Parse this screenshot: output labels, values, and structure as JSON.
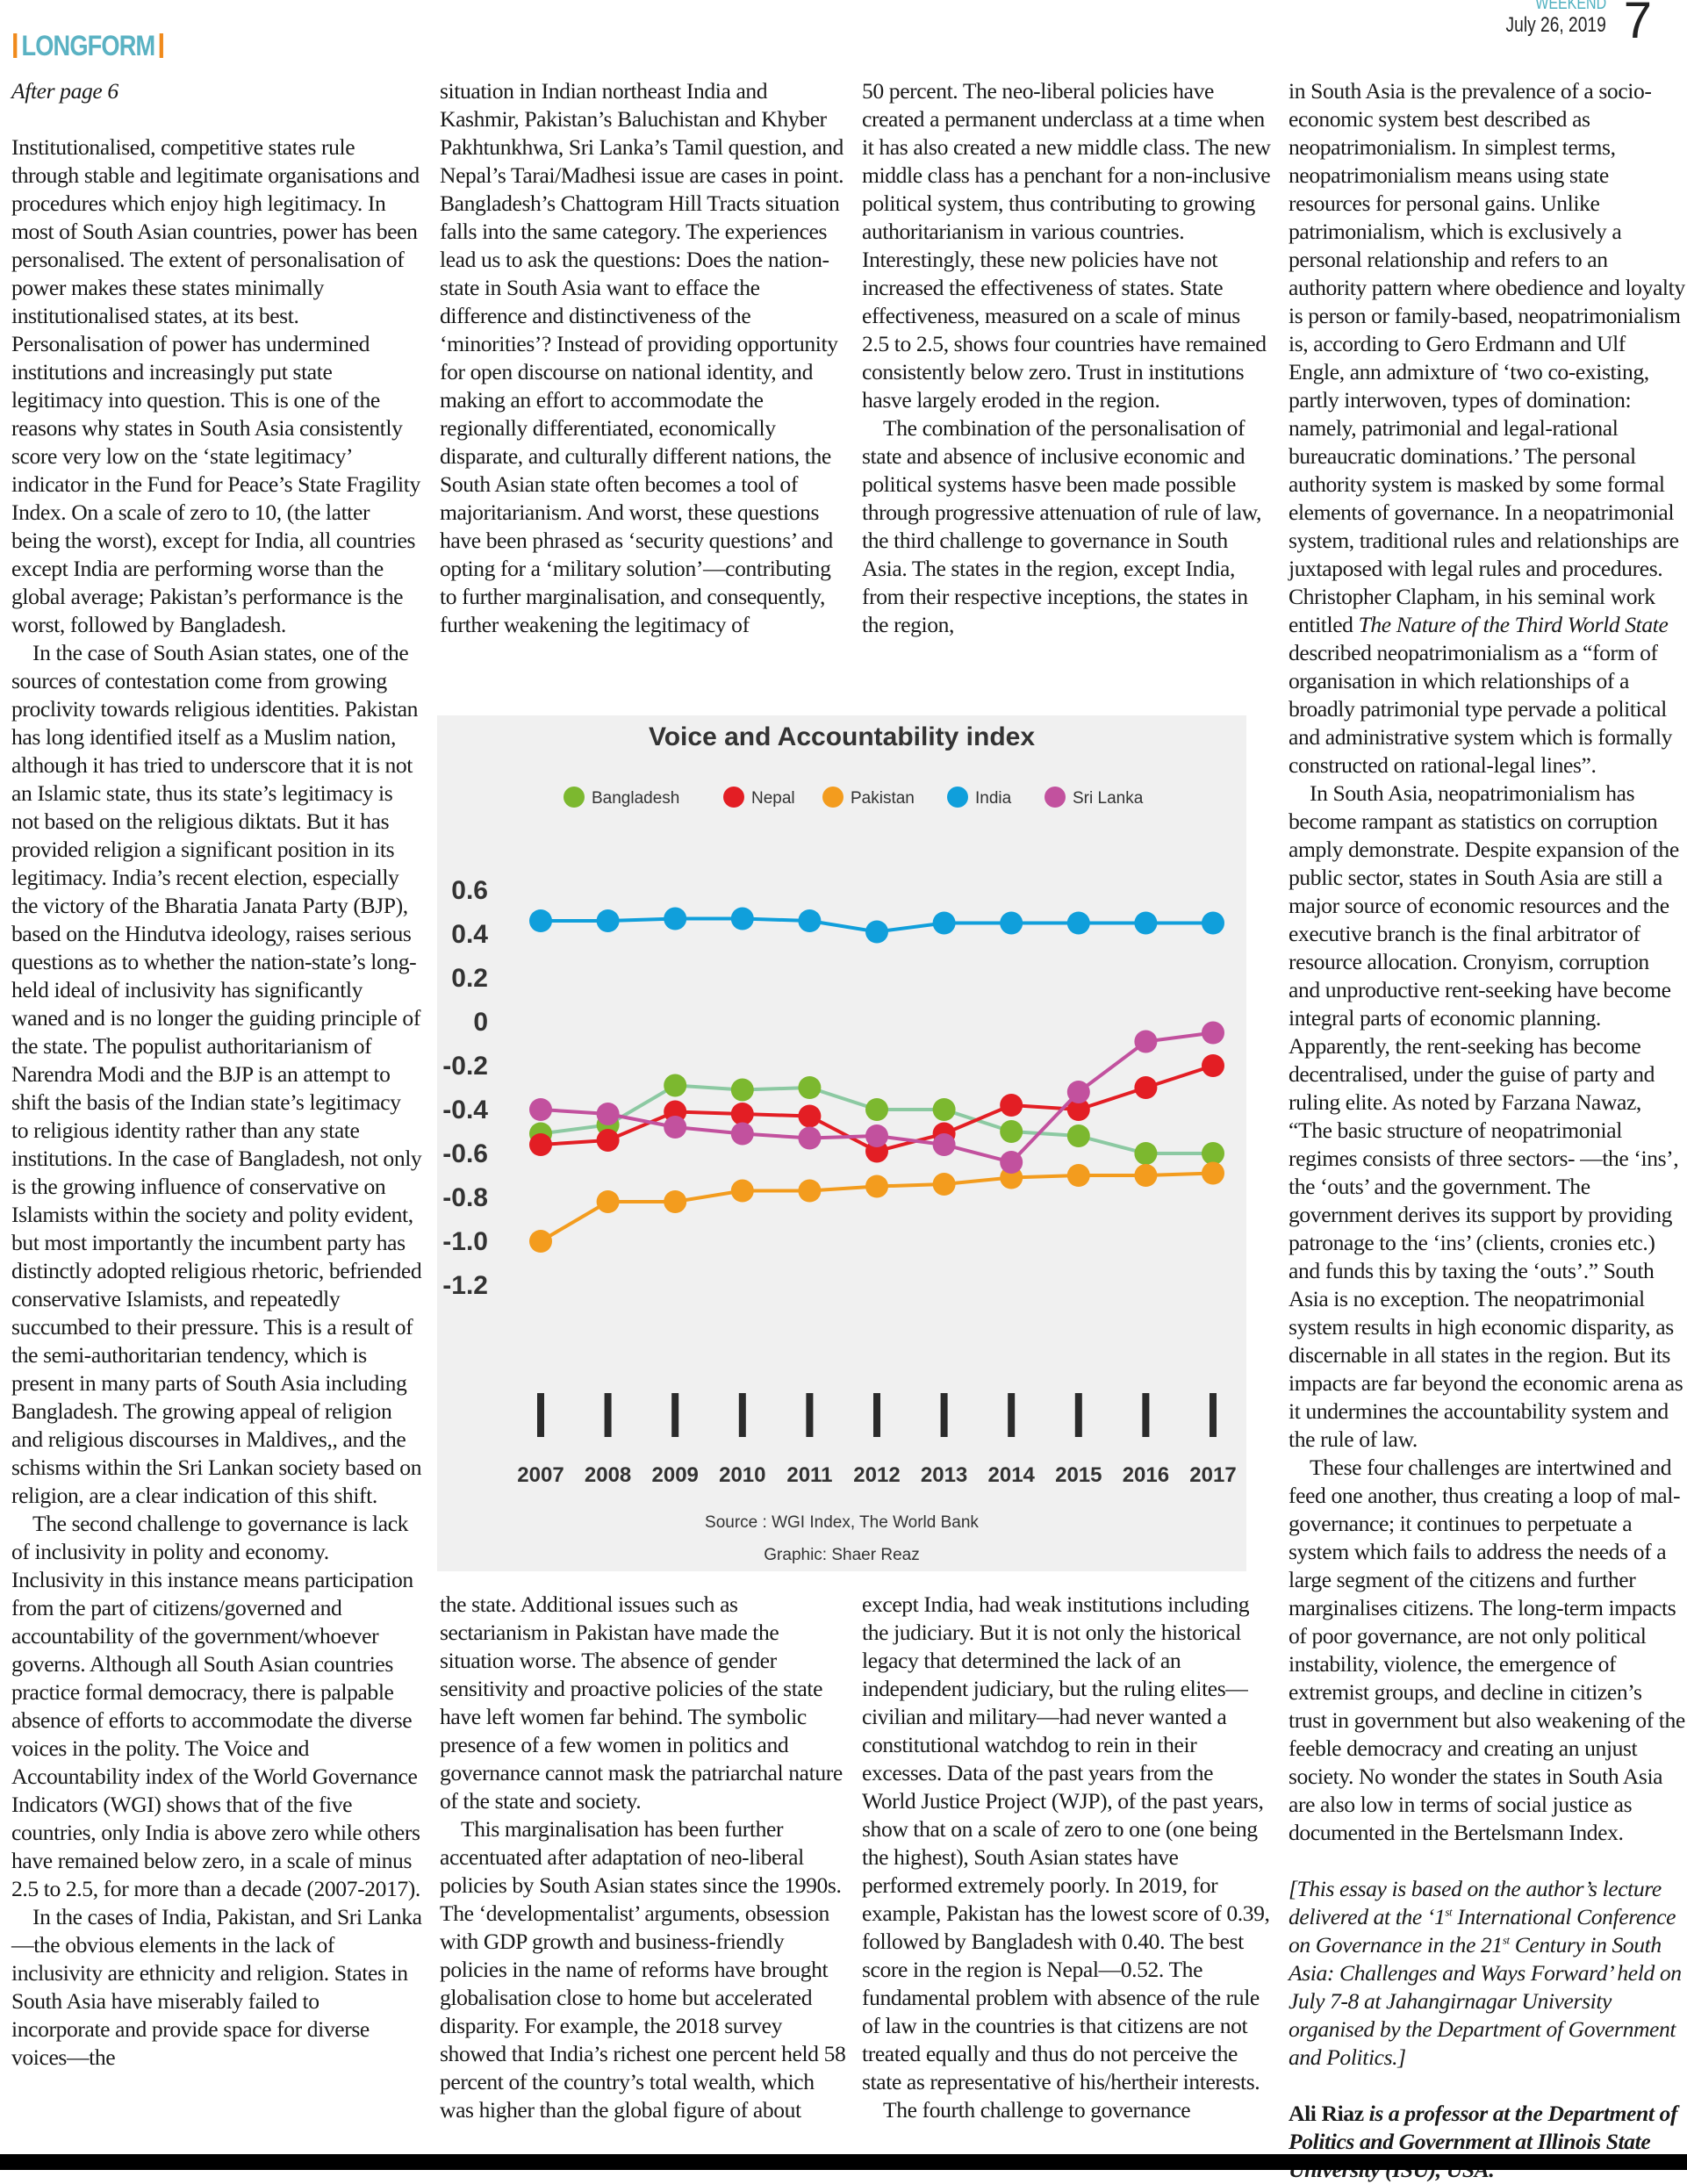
{
  "header": {
    "edition": "WEEKEND",
    "date": "July 26, 2019",
    "page_number": "7",
    "section": "LONGFORM"
  },
  "colors": {
    "section": "#5ab2c3",
    "section_bar": "#f08a1c",
    "chart_bg": "#f0f0f0"
  },
  "col1": {
    "jump": "After page 6",
    "p1": "Institutionalised, competitive states rule through stable and legitimate organisations and procedures which enjoy high legitimacy. In most of South Asian countries, power has been personalised. The extent of personalisation of power makes these states minimally institutionalised states, at its best. Personalisation of power has undermined institutions and increasingly put state legitimacy into question. This is one of the reasons why states in South Asia consistently score very low on the ‘state legitimacy’ indicator in the Fund for Peace’s State Fragility Index. On a scale of zero to 10, (the latter being the worst), except for India, all countries except India are performing worse than the global average; Pakistan’s performance is the worst, followed by Bangladesh.",
    "p2": "In the case of South Asian states, one of the sources of contestation come from growing proclivity towards religious identities. Pakistan has long identified itself as a Muslim nation, although it has tried to underscore that it is not an Islamic state, thus its state’s legitimacy is not based on the religious diktats. But it has provided religion a significant position in its legitimacy. India’s recent election, especially the victory of the Bharatia Janata Party (BJP), based on the Hindutva ideology, raises serious questions as to whether the nation-state’s long-held ideal of inclusivity has significantly waned and is no longer the guiding principle of the state. The populist authoritarianism of Narendra Modi and the BJP is an attempt to shift the basis of the Indian state’s legitimacy to religious identity rather than any state institutions. In the case of Bangladesh, not only is the growing influence of conservative on Islamists within the society and polity evident, but most importantly the incumbent party has distinctly adopted religious rhetoric, befriended conservative Islamists, and repeatedly succumbed to their pressure. This is a result of the semi-authoritarian tendency, which is present in many parts of South Asia including Bangladesh. The growing appeal of religion and religious discourses in Maldives,, and the schisms within the Sri Lankan society based on religion, are a clear indication of this shift.",
    "p3": "The second challenge to governance is lack of inclusivity in polity and economy. Inclusivity in this instance means participation from the part of citizens/governed and accountability of the government/whoever governs. Although all South Asian countries practice formal democracy, there is palpable absence of efforts to accommodate the diverse voices in the polity. The Voice and Accountability index of the World Governance Indicators (WGI) shows that of the five countries, only India is above zero while others have remained below zero, in a scale of minus 2.5 to 2.5, for more than a decade (2007-2017).",
    "p4": "In the cases of India, Pakistan, and Sri Lanka—the obvious elements in the lack of inclusivity are ethnicity and religion. States in South Asia have miserably failed to incorporate and provide space for diverse voices—the"
  },
  "col2_top": {
    "p1": "situation in Indian northeast India and Kashmir, Pakistan’s Baluchistan and Khyber Pakhtunkhwa, Sri Lanka’s Tamil question, and Nepal’s Tarai/Madhesi issue are cases in point. Bangladesh’s Chattogram Hill Tracts situation falls into the same category. The experiences lead us to ask the questions: Does the nation-state in South Asia want to efface the difference and distinctiveness of the ‘minorities’? Instead of providing opportunity for open discourse on national identity, and making an effort to accommodate the regionally differentiated, economically disparate, and culturally different nations, the South Asian state often becomes a tool of majoritarianism. And worst, these questions have been phrased as ‘security questions’ and opting for a ‘military solution’—contributing to further marginalisation, and consequently, further weakening the legitimacy of"
  },
  "col3_top": {
    "p1": "50 percent. The neo-liberal policies have created a permanent underclass at a time when it has also created a new middle class. The new middle class has a penchant for a non-inclusive political system, thus contributing to growing authoritarianism in various countries. Interestingly, these new policies have not increased the effectiveness of states. State effectiveness, measured on a scale of minus 2.5 to 2.5, shows four countries have remained consistently below zero. Trust in institutions hasve largely eroded in the region.",
    "p2": "The combination of the personalisation of state and absence of inclusive economic and political systems hasve been made possible through progressive attenuation of rule of law, the third challenge to governance in South Asia. The states in the region, except India, from their respective inceptions, the states in the region,"
  },
  "col2_bottom": {
    "p1": "the state. Additional issues such as sectarianism in Pakistan have made the situation worse. The absence of gender sensitivity and proactive policies of the state have left women far behind. The symbolic presence of a few women in politics and governance cannot mask the patriarchal nature of the state and society.",
    "p2": "This marginalisation has been further accentuated after adaptation of neo-liberal policies by South Asian states since the 1990s. The ‘developmentalist’ arguments, obsession with GDP growth and business-friendly policies in the name of reforms have brought globalisation close to home but accelerated disparity. For example, the 2018 survey showed that India’s richest one  percent held 58 percent of the country’s total wealth, which was higher than the global figure of about"
  },
  "col3_bottom": {
    "p1": "except India, had weak institutions including the judiciary. But it is not only the historical legacy that determined the lack of an independent judiciary, but the ruling elites—civilian and military—had never wanted a constitutional watchdog to rein in their excesses. Data of the past years from the World Justice Project (WJP), of the past years, show that on a scale of zero to one (one being the highest), South Asian states have performed extremely poorly. In 2019, for example, Pakistan has the lowest score of 0.39, followed by Bangladesh with 0.40. The best score in the region is Nepal—0.52. The fundamental problem with absence of the rule of law in the countries is that citizens are not treated equally and thus do not perceive the state as representative of his/hertheir interests.",
    "p2": "The fourth challenge to governance"
  },
  "col4": {
    "p1a": "in South Asia is the prevalence of a socio-economic system best described as neopatrimonialism. In simplest terms, neopatrimonialism means using state resources for personal gains. Unlike patrimonialism, which is exclusively a personal relationship and refers to an authority pattern where obedience and loyalty is person or family-based, neopatrimonialism is, according to Gero Erdmann and Ulf Engle, ann admixture of ‘two co-existing, partly interwoven, types of domination: namely, patrimonial and legal-rational bureaucratic dominations.’ The personal authority system is masked by some formal elements of governance. In a neopatrimonial system, traditional rules and relationships are juxtaposed with legal rules and procedures. Christopher Clapham, in his seminal work entitled ",
    "p1_title": "The Nature of the Third World State",
    "p1b": " described neopatrimonialism as a “form of organisation in which relationships of a broadly patrimonial type pervade a political and administrative system which is formally constructed on rational-legal lines”.",
    "p2": "In South Asia, neopatrimonialism has become rampant as statistics on corruption amply demonstrate. Despite expansion of the public sector, states in South Asia are still a major source of economic resources and the executive branch is the final arbitrator of resource allocation. Cronyism, corruption and unproductive rent-seeking have become integral parts of economic planning. Apparently, the rent-seeking has become decentralised, under the guise of party and ruling elite. As noted by Farzana Nawaz, “The basic structure of neopatrimonial regimes consists of three sectors- —the ‘ins’, the ‘outs’ and the government. The government derives its support by providing patronage to the ‘ins’ (clients, cronies etc.) and funds this by taxing the ‘outs’.” South Asia is no exception. The neopatrimonial system results in high economic disparity, as discernable in all states in the region. But its impacts are far beyond the economic arena as it undermines the accountability system and the rule of law.",
    "p3": "These four challenges are intertwined and feed one another, thus creating a loop of mal-governance; it continues to perpetuate a system which fails to address the needs of a large segment of the citizens and further marginalises citizens. The long-term impacts of poor governance, are not only political instability, violence, the emergence of extremist groups, and decline in citizen’s trust in government but also weakening of the feeble democracy and creating an unjust society. No wonder the states in South Asia are also low in terms of social justice as documented in the Bertelsmann Index.",
    "note_a": "[This essay is based on the author’s lecture delivered at the ‘1",
    "note_sup1": "st",
    "note_b": " International Conference on Governance in the 21",
    "note_sup2": "st",
    "note_c": " Century in South Asia: Challenges and Ways Forward’ held on July 7-8 at Jahangirnagar University organised by the Department of Government and Politics.]",
    "author_name": "Ali Riaz",
    "author_bio": " is a professor at the Department of Politics and Government at Illinois State University (ISU), USA."
  },
  "chart_data": {
    "type": "line",
    "title": "Voice and Accountability index",
    "x": [
      "2007",
      "2008",
      "2009",
      "2010",
      "2011",
      "2012",
      "2013",
      "2014",
      "2015",
      "2016",
      "2017"
    ],
    "y_ticks": [
      "0.6",
      "0.4",
      "0.2",
      "0",
      "-0.2",
      "-0.4",
      "-0.6",
      "-0.8",
      "-1.0",
      "-1.2"
    ],
    "ylim": [
      -1.2,
      0.6
    ],
    "grid": false,
    "legend_position": "top",
    "series": [
      {
        "name": "Bangladesh",
        "color": "#7cb82f",
        "line_color": "#8cc9a2",
        "values": [
          -0.51,
          -0.47,
          -0.29,
          -0.31,
          -0.3,
          -0.4,
          -0.4,
          -0.5,
          -0.52,
          -0.6,
          -0.6
        ]
      },
      {
        "name": "Nepal",
        "color": "#e31e24",
        "line_color": "#e31e24",
        "values": [
          -0.56,
          -0.54,
          -0.41,
          -0.42,
          -0.43,
          -0.59,
          -0.51,
          -0.38,
          -0.4,
          -0.3,
          -0.2
        ]
      },
      {
        "name": "Pakistan",
        "color": "#f39c1e",
        "line_color": "#f39c1e",
        "values": [
          -1.0,
          -0.82,
          -0.82,
          -0.77,
          -0.77,
          -0.75,
          -0.74,
          -0.71,
          -0.7,
          -0.7,
          -0.69
        ]
      },
      {
        "name": "India",
        "color": "#109fdb",
        "line_color": "#109fdb",
        "values": [
          0.46,
          0.46,
          0.47,
          0.47,
          0.46,
          0.41,
          0.45,
          0.45,
          0.45,
          0.45,
          0.45
        ]
      },
      {
        "name": "Sri Lanka",
        "color": "#c2519e",
        "line_color": "#c2519e",
        "values": [
          -0.4,
          -0.42,
          -0.48,
          -0.51,
          -0.53,
          -0.52,
          -0.56,
          -0.64,
          -0.32,
          -0.09,
          -0.05
        ]
      }
    ],
    "source": "Source : WGI Index, The World Bank",
    "credit": "Graphic: Shaer Reaz"
  }
}
